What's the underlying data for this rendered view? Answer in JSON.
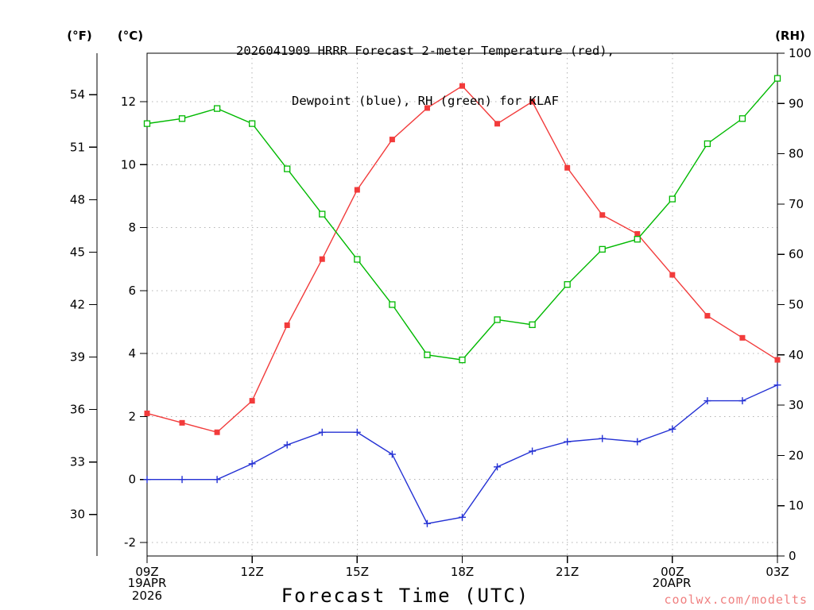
{
  "header": {
    "title_line1": "2026041909 HRRR Forecast 2-meter Temperature (red),",
    "title_line2": "Dewpoint (blue), RH (green) for KLAF"
  },
  "axes": {
    "f_label": "(°F)",
    "c_label": "(°C)",
    "rh_label": "(RH)",
    "x_title": "Forecast Time (UTC)",
    "start_date_line1": "19APR",
    "start_date_line2": "2026",
    "next_day_label": "20APR"
  },
  "footer": {
    "watermark": "coolwx.com/modelts",
    "watermark_color": "#f08080"
  },
  "chart_data": {
    "type": "line",
    "title": "2026041909 HRRR Forecast 2-meter Temperature (red), Dewpoint (blue), RH (green) for KLAF",
    "station": "KLAF",
    "xlabel": "Forecast Time (UTC)",
    "grid": true,
    "legend_position": "none",
    "x": [
      "09Z",
      "10Z",
      "11Z",
      "12Z",
      "13Z",
      "14Z",
      "15Z",
      "16Z",
      "17Z",
      "18Z",
      "19Z",
      "20Z",
      "21Z",
      "22Z",
      "23Z",
      "00Z",
      "01Z",
      "02Z",
      "03Z"
    ],
    "x_tick_labels": [
      "09Z",
      "12Z",
      "15Z",
      "18Z",
      "21Z",
      "00Z",
      "03Z"
    ],
    "x_tick_indices": [
      0,
      3,
      6,
      9,
      12,
      15,
      18
    ],
    "series": [
      {
        "key": "temperature-series",
        "name": "2-meter Temperature",
        "unit": "°C",
        "color": "#f23b3b",
        "marker": "filled-square",
        "axis": "celsius",
        "values": [
          2.1,
          1.8,
          1.5,
          2.5,
          4.9,
          7.0,
          9.2,
          10.8,
          11.8,
          12.5,
          11.3,
          12.0,
          9.9,
          8.4,
          7.8,
          6.5,
          5.2,
          4.5,
          3.8
        ]
      },
      {
        "key": "dewpoint-series",
        "name": "Dewpoint",
        "unit": "°C",
        "color": "#2431d4",
        "marker": "plus",
        "axis": "celsius",
        "values": [
          0.0,
          0.0,
          0.0,
          0.5,
          1.1,
          1.5,
          1.5,
          0.8,
          -1.4,
          -1.2,
          0.4,
          0.9,
          1.2,
          1.3,
          1.2,
          1.6,
          2.5,
          2.5,
          3.0
        ]
      },
      {
        "key": "rh-series",
        "name": "Relative Humidity",
        "unit": "%",
        "color": "#00b900",
        "marker": "open-square",
        "axis": "rh",
        "values": [
          86,
          87,
          89,
          86,
          77,
          68,
          59,
          50,
          40,
          39,
          47,
          46,
          54,
          61,
          63,
          71,
          82,
          87,
          95
        ]
      }
    ],
    "celsius_ticks": [
      -2,
      0,
      2,
      4,
      6,
      8,
      10,
      12
    ],
    "fahrenheit_ticks": [
      30,
      33,
      36,
      39,
      42,
      45,
      48,
      51,
      54
    ],
    "rh_ticks": [
      0,
      10,
      20,
      30,
      40,
      50,
      60,
      70,
      80,
      90,
      100
    ],
    "celsius_axis_range": [
      -2.43,
      13.54
    ],
    "rh_axis_range": [
      0,
      100
    ]
  }
}
